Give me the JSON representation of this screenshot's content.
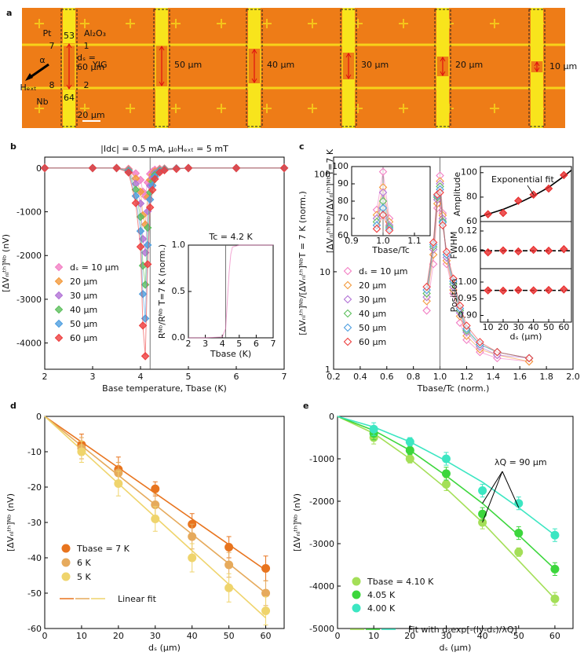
{
  "micrograph": {
    "panel": "a",
    "labels": [
      "Pt",
      "Al₂O₃",
      "53",
      "7",
      "1",
      "dₛ =",
      "60 μm",
      "YIG",
      "α",
      "Hₑₓₜ",
      "8",
      "2",
      "Nb",
      "64",
      "20 μm",
      "50 μm",
      "40 μm",
      "30 μm",
      "20 μm",
      "10 μm"
    ]
  },
  "chart_data": [
    {
      "type": "scatter",
      "panel": "b",
      "title": "|Idc| = 0.5 mA, μ₀Hₑₓₜ = 5 mT",
      "x_label": "Base temperature, Tbase (K)",
      "y_label": "[ΔVₙₗᵗʰ]ᴺᵇ (nV)",
      "marker": "diamond",
      "connect": true,
      "vline": 4.2,
      "x": [
        2,
        3,
        3.5,
        3.75,
        3.9,
        4.0,
        4.05,
        4.1,
        4.15,
        4.2,
        4.25,
        4.3,
        4.4,
        4.5,
        4.75,
        5,
        6,
        7
      ],
      "series": [
        {
          "name": "dₛ = 10 μm",
          "color": "#f27fc4",
          "values": [
            0,
            0,
            0,
            -15,
            -120,
            -270,
            -540,
            -645,
            -330,
            -135,
            -75,
            -38,
            -15,
            -8,
            -3,
            0,
            0,
            0
          ]
        },
        {
          "name": "20 μm",
          "color": "#f39a3c",
          "values": [
            0,
            0,
            0,
            -30,
            -240,
            -540,
            -1080,
            -1290,
            -660,
            -270,
            -150,
            -75,
            -30,
            -15,
            -6,
            0,
            0,
            0
          ]
        },
        {
          "name": "30 μm",
          "color": "#b273d6",
          "values": [
            0,
            0,
            0,
            -45,
            -360,
            -810,
            -1620,
            -1935,
            -990,
            -405,
            -225,
            -113,
            -45,
            -23,
            -9,
            0,
            0,
            0
          ]
        },
        {
          "name": "40 μm",
          "color": "#5dbf5d",
          "values": [
            0,
            0,
            0,
            -62,
            -496,
            -1116,
            -2232,
            -2666,
            -1364,
            -558,
            -310,
            -155,
            -62,
            -31,
            -12,
            0,
            0,
            0
          ]
        },
        {
          "name": "50 μm",
          "color": "#4f9fe0",
          "values": [
            0,
            0,
            0,
            -80,
            -640,
            -1440,
            -2880,
            -3440,
            -1760,
            -720,
            -400,
            -200,
            -80,
            -40,
            -16,
            0,
            0,
            0
          ]
        },
        {
          "name": "60 μm",
          "color": "#ee3f3f",
          "values": [
            0,
            0,
            0,
            -100,
            -800,
            -1800,
            -3600,
            -4300,
            -2200,
            -900,
            -500,
            -250,
            -100,
            -50,
            -20,
            0,
            0,
            0
          ]
        }
      ],
      "xlim": [
        2,
        7
      ],
      "xticks": [
        2,
        3,
        4,
        5,
        6,
        7
      ],
      "ylim": [
        -4600,
        250
      ],
      "yticks": [
        0,
        -1000,
        -2000,
        -3000,
        -4000
      ]
    },
    {
      "type": "line",
      "title": "Tc = 4.2 K",
      "x_label": "Tbase (K)",
      "y_label": "Rᴺᵇ/Rᴺᵇ T=7 K (norm.)",
      "connect": true,
      "vline": 4.2,
      "x": [
        2,
        3,
        4,
        4.2,
        4.3,
        4.4,
        4.5,
        4.6,
        5,
        6,
        7
      ],
      "series": [
        {
          "color": "#e96ab5",
          "values": [
            0,
            0,
            0.01,
            0.1,
            0.4,
            0.7,
            0.9,
            0.98,
            1,
            1,
            1
          ]
        }
      ],
      "xlim": [
        2,
        7
      ],
      "xticks": [
        2,
        3,
        4,
        5,
        6,
        7
      ],
      "ylim": [
        0,
        1
      ],
      "yticks": [
        {
          "value": 0,
          "label": "0.0"
        },
        0.5,
        {
          "value": 1,
          "label": "1.0"
        }
      ]
    },
    {
      "type": "scatter",
      "panel": "c",
      "x_label": "Tbase/Tc (norm.)",
      "y_label": "[ΔVₙₗᵗʰ]ᴺᵇ/[ΔVₙₗᵗʰ]ᴺᵇT = 7 K (norm.)",
      "marker": "open-diamond",
      "connect": true,
      "vline": 1.0,
      "log": true,
      "x": [
        0.9,
        0.95,
        0.98,
        1.0,
        1.02,
        1.05,
        1.1,
        1.15,
        1.2,
        1.3,
        1.43,
        1.67
      ],
      "series": [
        {
          "name": "dₛ = 10 μm",
          "color": "#f27fc4",
          "values": [
            4,
            12,
            45,
            97,
            40,
            12,
            6,
            3,
            2,
            1.5,
            1.3,
            1.2
          ]
        },
        {
          "name": "20 μm",
          "color": "#f39a3c",
          "values": [
            5,
            15,
            50,
            85,
            38,
            13,
            6.5,
            3.5,
            2.2,
            1.6,
            1.4,
            1.2
          ]
        },
        {
          "name": "30 μm",
          "color": "#b273d6",
          "values": [
            5.5,
            17,
            55,
            80,
            35,
            14,
            7,
            3.8,
            2.4,
            1.7,
            1.4,
            1.3
          ]
        },
        {
          "name": "40 μm",
          "color": "#5dbf5d",
          "values": [
            6,
            18,
            58,
            75,
            33,
            15,
            7.5,
            4,
            2.5,
            1.8,
            1.5,
            1.3
          ]
        },
        {
          "name": "50 μm",
          "color": "#4f9fe0",
          "values": [
            6.5,
            19,
            60,
            70,
            32,
            15,
            8,
            4.2,
            2.6,
            1.8,
            1.5,
            1.3
          ]
        },
        {
          "name": "60 μm",
          "color": "#ee3f3f",
          "values": [
            7,
            20,
            62,
            65,
            30,
            16,
            8.5,
            4.5,
            2.8,
            1.9,
            1.5,
            1.3
          ]
        }
      ],
      "xlim": [
        0.2,
        2.0
      ],
      "xticks": [
        0.2,
        0.4,
        0.6,
        0.8,
        {
          "value": 1,
          "label": "1.0"
        },
        1.2,
        1.4,
        1.6,
        1.8,
        {
          "value": 2,
          "label": "2.0"
        }
      ],
      "ylim": [
        1,
        150
      ],
      "yticks": [
        1,
        10,
        100
      ]
    },
    {
      "type": "scatter",
      "x_label": "Tbase/Tc",
      "y_label": "[ΔVₙₗᵗʰ]ᴺᵇ/[ΔVₙₗᵗʰ]ᴺᵇT=7 K",
      "marker": "open-diamond",
      "connect": true,
      "vline": 1.0,
      "x": [
        0.98,
        1.0,
        1.02
      ],
      "series": [
        {
          "color": "#f27fc4",
          "values": [
            75,
            97,
            70
          ]
        },
        {
          "color": "#f39a3c",
          "values": [
            72,
            88,
            68
          ]
        },
        {
          "color": "#b273d6",
          "values": [
            70,
            85,
            66
          ]
        },
        {
          "color": "#5dbf5d",
          "values": [
            68,
            80,
            65
          ]
        },
        {
          "color": "#4f9fe0",
          "values": [
            66,
            76,
            64
          ]
        },
        {
          "color": "#ee3f3f",
          "values": [
            64,
            72,
            63
          ]
        }
      ],
      "xlim": [
        0.9,
        1.15
      ],
      "xticks": [
        0.9,
        {
          "value": 1,
          "label": "1.0"
        },
        1.1
      ],
      "ylim": [
        60,
        100
      ],
      "yticks": [
        60,
        70,
        80,
        90,
        100
      ]
    },
    {
      "type": "scatter",
      "y_label": "Amplitude",
      "marker": "diamond",
      "annotation": "Exponential fit",
      "x": [
        10,
        20,
        30,
        40,
        50,
        60
      ],
      "series": [
        {
          "color": "#e82c2c",
          "values": [
            66,
            67,
            77,
            82,
            87,
            98
          ]
        }
      ],
      "fits": [
        {
          "color": "#000000",
          "x": [
            5,
            10,
            20,
            30,
            40,
            50,
            60,
            65
          ],
          "values": [
            64,
            66,
            70,
            75,
            81,
            88,
            97,
            102
          ]
        }
      ],
      "xlim": [
        5,
        65
      ],
      "ylim": [
        60,
        105
      ],
      "yticks": [
        60,
        80,
        100
      ]
    },
    {
      "type": "scatter",
      "y_label": "FWHM",
      "marker": "diamond",
      "x": [
        10,
        20,
        30,
        40,
        50,
        60
      ],
      "series": [
        {
          "color": "#e82c2c",
          "values": [
            0.052,
            0.058,
            0.055,
            0.06,
            0.057,
            0.062
          ]
        }
      ],
      "fits": [
        {
          "color": "#000000",
          "dash": true,
          "x": [
            5,
            65
          ],
          "values": [
            0.057,
            0.057
          ]
        }
      ],
      "xlim": [
        5,
        65
      ],
      "ylim": [
        0,
        0.15
      ],
      "yticks": [
        0.06,
        0.12
      ]
    },
    {
      "type": "scatter",
      "y_label": "Position",
      "x_label": "dₛ (μm)",
      "marker": "diamond",
      "x": [
        10,
        20,
        30,
        40,
        50,
        60
      ],
      "series": [
        {
          "color": "#e82c2c",
          "values": [
            0.975,
            0.974,
            0.976,
            0.975,
            0.976,
            0.978
          ]
        }
      ],
      "fits": [
        {
          "color": "#000000",
          "dash": true,
          "x": [
            5,
            65
          ],
          "values": [
            0.975,
            0.975
          ]
        }
      ],
      "xlim": [
        5,
        65
      ],
      "xticks": [
        10,
        20,
        30,
        40,
        50,
        60
      ],
      "ylim": [
        0.88,
        1.04
      ],
      "yticks": [
        {
          "value": 0.9,
          "label": "0.90"
        },
        0.95,
        {
          "value": 1,
          "label": "1.00"
        }
      ]
    },
    {
      "type": "scatter",
      "panel": "d",
      "x_label": "dₛ (μm)",
      "y_label": "[ΔVₙₗᵗʰ]ᴺᵇ (nV)",
      "marker": "circle",
      "x": [
        10,
        20,
        30,
        40,
        50,
        60
      ],
      "series": [
        {
          "name": "Tbase = 7 K",
          "color": "#e8741e",
          "values": [
            -8,
            -15,
            -20.5,
            -30.5,
            -37,
            -43
          ],
          "errors": [
            3,
            3.5,
            2,
            3,
            3,
            3.5
          ]
        },
        {
          "name": "6 K",
          "color": "#e6aa5c",
          "values": [
            -9,
            -16,
            -25,
            -34,
            -42,
            -50
          ],
          "errors": [
            3,
            3,
            3,
            3.5,
            3.5,
            3.5
          ]
        },
        {
          "name": "5 K",
          "color": "#efd46c",
          "values": [
            -10,
            -19,
            -29,
            -40,
            -48.5,
            -55
          ],
          "errors": [
            3,
            3.5,
            3.5,
            4,
            4,
            4
          ]
        }
      ],
      "fits": [
        {
          "color": "#e8741e",
          "x": [
            0,
            60
          ],
          "values": [
            0,
            -43.5
          ]
        },
        {
          "color": "#e6aa5c",
          "x": [
            0,
            60
          ],
          "values": [
            0,
            -50
          ]
        },
        {
          "color": "#efd46c",
          "x": [
            0,
            60
          ],
          "values": [
            0,
            -57
          ]
        }
      ],
      "fit_label": "Linear fit",
      "xlim": [
        0,
        65
      ],
      "xticks": [
        0,
        10,
        20,
        30,
        40,
        50,
        60
      ],
      "ylim": [
        -60,
        0
      ],
      "yticks": [
        0,
        -10,
        -20,
        -30,
        -40,
        -50,
        -60
      ]
    },
    {
      "type": "scatter",
      "panel": "e",
      "x_label": "dₛ (μm)",
      "y_label": "[ΔVₙₗᵗʰ]ᴺᵇ (nV)",
      "marker": "circle",
      "annotation": "λQ = 90 μm",
      "x": [
        10,
        20,
        30,
        40,
        50,
        60
      ],
      "series": [
        {
          "name": "Tbase = 4.10 K",
          "color": "#a4df58",
          "values": [
            -500,
            -1000,
            -1600,
            -2500,
            -3200,
            -4300
          ],
          "errors": [
            150,
            100,
            150,
            150,
            100,
            150
          ]
        },
        {
          "name": "4.05 K",
          "color": "#3cd63c",
          "values": [
            -400,
            -800,
            -1350,
            -2300,
            -2750,
            -3600
          ],
          "errors": [
            150,
            100,
            150,
            150,
            150,
            150
          ]
        },
        {
          "name": "4.00 K",
          "color": "#3ce6c2",
          "values": [
            -300,
            -600,
            -1000,
            -1750,
            -2050,
            -2800
          ],
          "errors": [
            150,
            100,
            150,
            150,
            150,
            150
          ]
        }
      ],
      "fits": [
        {
          "color": "#a4df58",
          "x": [
            0,
            10,
            20,
            30,
            40,
            50,
            60
          ],
          "values": [
            0,
            -400,
            -1000,
            -1700,
            -2500,
            -3400,
            -4300
          ]
        },
        {
          "color": "#3cd63c",
          "x": [
            0,
            10,
            20,
            30,
            40,
            50,
            60
          ],
          "values": [
            0,
            -330,
            -800,
            -1400,
            -2050,
            -2800,
            -3600
          ]
        },
        {
          "color": "#3ce6c2",
          "x": [
            0,
            10,
            20,
            30,
            40,
            50,
            60
          ],
          "values": [
            0,
            -250,
            -600,
            -1050,
            -1550,
            -2150,
            -2800
          ]
        }
      ],
      "fit_label": "Fit with dₛexp[-(ly-dₛ)/λQ]",
      "xlim": [
        0,
        65
      ],
      "xticks": [
        0,
        10,
        20,
        30,
        40,
        50,
        60
      ],
      "ylim": [
        -5000,
        0
      ],
      "yticks": [
        0,
        -1000,
        -2000,
        -3000,
        -4000,
        -5000
      ]
    }
  ]
}
